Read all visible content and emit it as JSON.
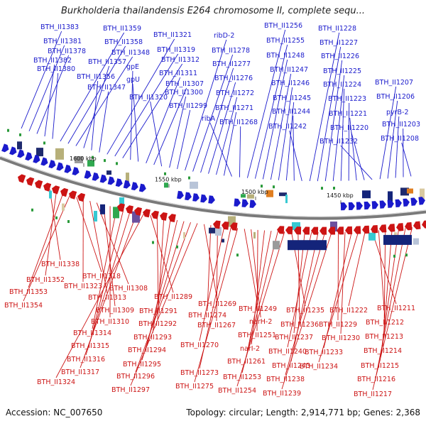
{
  "title": "Burkholderia thailandensis E264 chromosome II, complete sequ...",
  "footer": {
    "accession": "Accession: NC_007650",
    "summary": "Topology: circular; Length: 2,914,771 bp; Genes: 2,368"
  },
  "colors": {
    "forward": "#1a1acc",
    "reverse": "#cc1414",
    "backbone": "#7a7a7a"
  },
  "kbp_ticks": [
    "1600 kbp",
    "1550 kbp",
    "1500 kbp",
    "1450 kbp"
  ],
  "top_labels": [
    "BTH_II1383",
    "BTH_II1381",
    "BTH_II1378",
    "BTH_II1382",
    "BTH_II1380",
    "BTH_II1359",
    "BTH_II1358",
    "BTH_II1348",
    "BTH_II1357",
    "BTH_II1356",
    "BTH_II1347",
    "BTH_II1321",
    "BTH_II1319",
    "BTH_II1312",
    "gpE",
    "gpU",
    "BTH_II1311",
    "BTH_II1307",
    "BTH_II1320",
    "BTH_II1300",
    "BTH_II1299",
    "ribD-2",
    "BTH_II1278",
    "BTH_II1277",
    "BTH_II1276",
    "BTH_II1272",
    "BTH_II1271",
    "ribA",
    "BTH_II1268",
    "BTH_II1256",
    "BTH_II1255",
    "BTH_II1248",
    "BTH_II1247",
    "BTH_II1246",
    "BTH_II1245",
    "BTH_II1244",
    "BTH_II1242",
    "BTH_II1228",
    "BTH_II1227",
    "BTH_II1226",
    "BTH_II1225",
    "BTH_II1224",
    "BTH_II1223",
    "BTH_II1221",
    "BTH_II1220",
    "BTH_II1232",
    "BTH_II1207",
    "BTH_II1206",
    "pyrB-2",
    "BTH_II1203",
    "BTH_II1208"
  ],
  "bottom_labels": [
    "BTH_II1338",
    "BTH_II1352",
    "BTH_II1353",
    "BTH_II1354",
    "BTH_II1318",
    "BTH_II1323",
    "BTH_II1313",
    "BTH_II1308",
    "BTH_II1309",
    "BTH_II1310",
    "BTH_II1314",
    "BTH_II1315",
    "BTH_II1316",
    "BTH_II1317",
    "BTH_II1324",
    "BTH_II1289",
    "BTH_II1291",
    "BTH_II1292",
    "BTH_II1293",
    "BTH_II1294",
    "BTH_II1295",
    "BTH_II1296",
    "BTH_II1297",
    "BTH_II1269",
    "BTH_II1274",
    "BTH_II1267",
    "BTH_II1270",
    "BTH_II1273",
    "BTH_II1275",
    "BTH_II1249",
    "narH-2",
    "BTH_II1251",
    "narI-2",
    "BTH_II1261",
    "BTH_II1253",
    "BTH_II1254",
    "BTH_II1235",
    "BTH_II1236",
    "BTH_II1237",
    "BTH_II1240",
    "BTH_II1243",
    "BTH_II1238",
    "BTH_II1239",
    "BTH_II1229",
    "BTH_II1230",
    "BTH_II1233",
    "BTH_II1234",
    "BTH_II1222",
    "BTH_II1211",
    "BTH_II1212",
    "BTH_II1213",
    "BTH_II1214",
    "BTH_II1215",
    "BTH_II1216",
    "BTH_II1217"
  ]
}
